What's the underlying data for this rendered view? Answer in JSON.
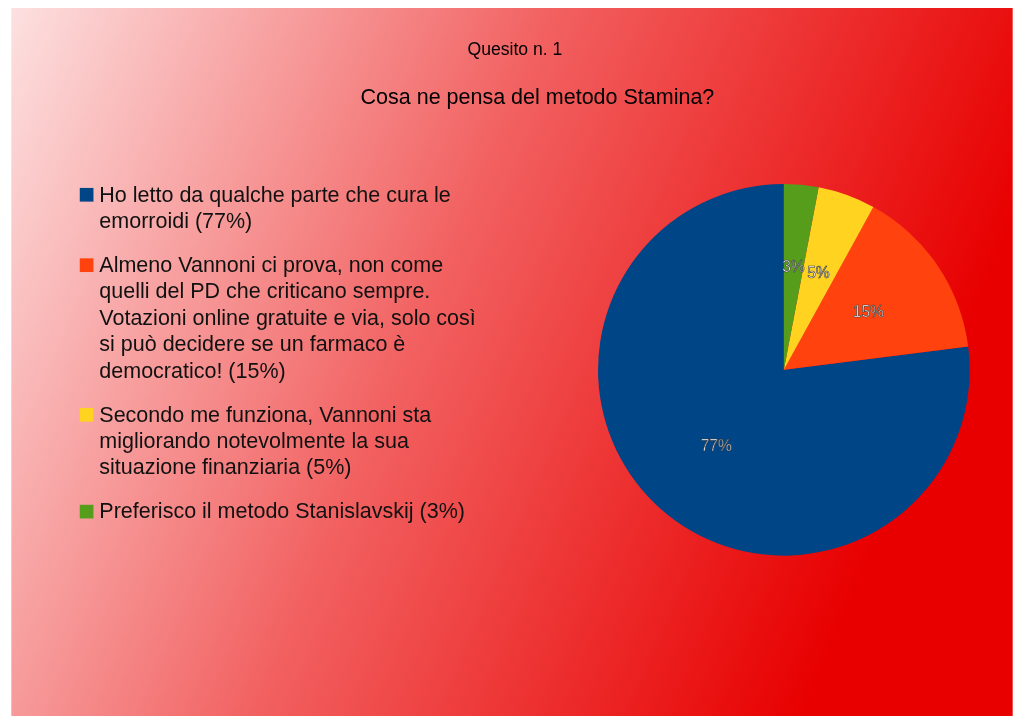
{
  "chart_data": {
    "type": "pie",
    "title": "Quesito n. 1",
    "subtitle": "Cosa ne pensa del metodo Stamina?",
    "categories": [
      "Ho letto da qualche parte che cura le emorroidi (77%)",
      "Almeno Vannoni ci prova, non come quelli del PD che criticano sempre. Votazioni online gratuite e via, solo così si può decidere se un farmaco è democratico! (15%)",
      "Secondo me funziona, Vannoni sta migliorando notevolmente la sua situazione finanziaria (5%)",
      "Preferisco il metodo Stanislavskij (3%)"
    ],
    "values": [
      77,
      15,
      5,
      3
    ],
    "colors": [
      "#004586",
      "#ff420e",
      "#ffd320",
      "#579d1c"
    ],
    "value_labels": [
      "77%",
      "15%",
      "5%",
      "3%"
    ],
    "legend": "left"
  }
}
